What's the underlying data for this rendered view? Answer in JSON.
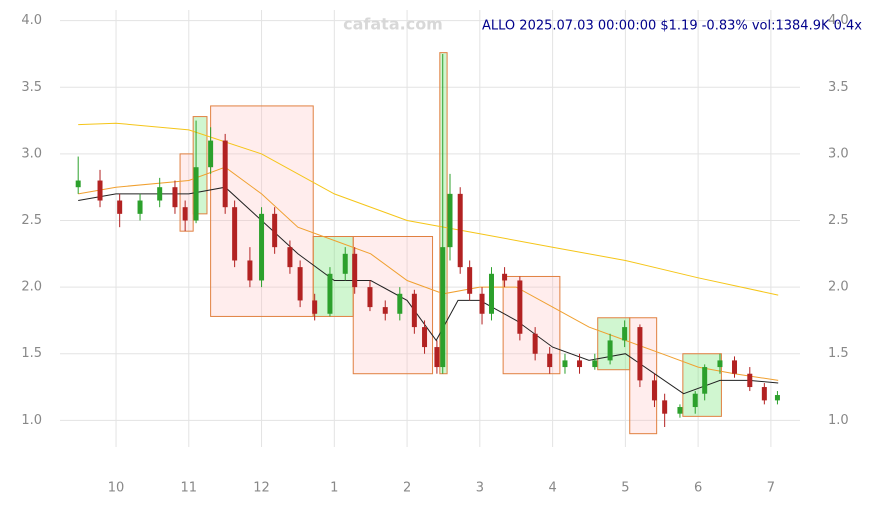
{
  "chart_data": {
    "type": "candlestick",
    "title": "ALLO 2025.07.03 00:00:00 $1.19 -0.83% vol:1384.9K 0.4x",
    "watermark": "cafata.com",
    "xlim": [
      9.23,
      19.4
    ],
    "ylim": [
      0.8,
      4.08
    ],
    "grid": true,
    "xticks": [
      {
        "value": 10,
        "label": "10"
      },
      {
        "value": 11,
        "label": "11"
      },
      {
        "value": 12,
        "label": "12"
      },
      {
        "value": 13,
        "label": "1"
      },
      {
        "value": 14,
        "label": "2"
      },
      {
        "value": 15,
        "label": "3"
      },
      {
        "value": 16,
        "label": "4"
      },
      {
        "value": 17,
        "label": "5"
      },
      {
        "value": 18,
        "label": "6"
      },
      {
        "value": 19,
        "label": "7"
      }
    ],
    "yticks": [
      {
        "value": 1,
        "label": "1.0"
      },
      {
        "value": 1.5,
        "label": "1.5"
      },
      {
        "value": 2,
        "label": "2.0"
      },
      {
        "value": 2.5,
        "label": "2.5"
      },
      {
        "value": 3,
        "label": "3.0"
      },
      {
        "value": 3.5,
        "label": "3.5"
      },
      {
        "value": 4,
        "label": "4.0"
      }
    ],
    "up_color": "#2ca02c",
    "down_color": "#b22222",
    "x": [
      9.48,
      9.78,
      10.05,
      10.33,
      10.6,
      10.81,
      10.95,
      11.1,
      11.3,
      11.5,
      11.63,
      11.84,
      12.0,
      12.18,
      12.39,
      12.53,
      12.73,
      12.94,
      13.15,
      13.28,
      13.49,
      13.7,
      13.9,
      14.1,
      14.24,
      14.41,
      14.49,
      14.59,
      14.73,
      14.86,
      15.03,
      15.16,
      15.34,
      15.55,
      15.76,
      15.96,
      16.17,
      16.37,
      16.58,
      16.79,
      16.99,
      17.2,
      17.4,
      17.54,
      17.75,
      17.96,
      18.09,
      18.3,
      18.5,
      18.71,
      18.91,
      19.09
    ],
    "open": [
      2.75,
      2.8,
      2.65,
      2.55,
      2.65,
      2.75,
      2.6,
      2.5,
      2.9,
      3.1,
      2.6,
      2.2,
      2.05,
      2.55,
      2.3,
      2.15,
      1.9,
      1.8,
      2.1,
      2.25,
      2.0,
      1.85,
      1.8,
      1.95,
      1.7,
      1.55,
      1.4,
      2.3,
      2.7,
      2.15,
      1.95,
      1.8,
      2.1,
      2.05,
      1.65,
      1.5,
      1.4,
      1.45,
      1.4,
      1.45,
      1.6,
      1.7,
      1.3,
      1.15,
      1.05,
      1.1,
      1.2,
      1.4,
      1.45,
      1.35,
      1.25,
      1.15
    ],
    "high": [
      2.98,
      2.88,
      2.7,
      2.7,
      2.82,
      2.8,
      2.65,
      3.25,
      3.2,
      3.15,
      2.65,
      2.3,
      2.6,
      2.6,
      2.35,
      2.2,
      1.95,
      2.15,
      2.3,
      2.3,
      2.05,
      1.9,
      2.0,
      1.98,
      1.75,
      1.6,
      3.75,
      2.85,
      2.75,
      2.2,
      2.0,
      2.15,
      2.15,
      2.08,
      1.7,
      1.55,
      1.5,
      1.5,
      1.5,
      1.65,
      1.75,
      1.72,
      1.35,
      1.2,
      1.12,
      1.22,
      1.42,
      1.5,
      1.48,
      1.4,
      1.28,
      1.22
    ],
    "low": [
      2.7,
      2.6,
      2.45,
      2.5,
      2.6,
      2.55,
      2.42,
      2.48,
      2.85,
      2.55,
      2.15,
      2.0,
      2.0,
      2.25,
      2.1,
      1.85,
      1.75,
      1.78,
      2.05,
      1.95,
      1.82,
      1.75,
      1.75,
      1.65,
      1.5,
      1.35,
      1.35,
      2.2,
      2.1,
      1.9,
      1.72,
      1.75,
      2.0,
      1.6,
      1.45,
      1.35,
      1.35,
      1.35,
      1.38,
      1.42,
      1.55,
      1.25,
      1.1,
      0.95,
      1.02,
      1.05,
      1.15,
      1.35,
      1.32,
      1.22,
      1.12,
      1.12
    ],
    "close": [
      2.8,
      2.65,
      2.55,
      2.65,
      2.75,
      2.6,
      2.5,
      2.9,
      3.1,
      2.6,
      2.2,
      2.05,
      2.55,
      2.3,
      2.15,
      1.9,
      1.8,
      2.1,
      2.25,
      2.0,
      1.85,
      1.8,
      1.95,
      1.7,
      1.55,
      1.4,
      2.3,
      2.7,
      2.15,
      1.95,
      1.8,
      2.1,
      2.05,
      1.65,
      1.5,
      1.4,
      1.45,
      1.4,
      1.45,
      1.6,
      1.7,
      1.3,
      1.15,
      1.05,
      1.1,
      1.2,
      1.4,
      1.45,
      1.35,
      1.25,
      1.15,
      1.19
    ],
    "lines": [
      {
        "color": "#f5c518",
        "x": [
          9.48,
          10,
          11,
          12,
          13,
          14,
          15,
          16,
          17,
          18,
          19.1
        ],
        "values": [
          3.22,
          3.23,
          3.18,
          3.0,
          2.7,
          2.5,
          2.4,
          2.3,
          2.2,
          2.07,
          1.94
        ]
      },
      {
        "color": "#f0a030",
        "x": [
          9.48,
          10,
          11,
          11.5,
          12,
          12.5,
          13,
          13.5,
          14,
          14.5,
          15,
          15.5,
          16,
          16.5,
          17,
          17.5,
          18,
          18.5,
          19.1
        ],
        "values": [
          2.7,
          2.75,
          2.8,
          2.9,
          2.7,
          2.45,
          2.35,
          2.25,
          2.05,
          1.95,
          2.0,
          2.0,
          1.85,
          1.7,
          1.6,
          1.5,
          1.4,
          1.35,
          1.3
        ]
      },
      {
        "color": "#222222",
        "x": [
          9.48,
          10,
          10.5,
          11,
          11.5,
          12,
          12.5,
          13,
          13.5,
          14,
          14.4,
          14.7,
          15,
          15.5,
          16,
          16.5,
          17,
          17.4,
          17.8,
          18.3,
          18.7,
          19.1
        ],
        "values": [
          2.65,
          2.7,
          2.7,
          2.7,
          2.75,
          2.5,
          2.25,
          2.05,
          2.05,
          1.9,
          1.6,
          1.9,
          1.9,
          1.75,
          1.55,
          1.45,
          1.5,
          1.35,
          1.2,
          1.3,
          1.3,
          1.28
        ]
      }
    ],
    "boxes": [
      {
        "color": "pink",
        "x": [
          10.88,
          11.06
        ],
        "values": [
          2.42,
          3.0
        ]
      },
      {
        "color": "green",
        "x": [
          11.06,
          11.25
        ],
        "values": [
          2.55,
          3.28
        ]
      },
      {
        "color": "pink",
        "x": [
          11.3,
          12.71
        ],
        "values": [
          1.78,
          3.36
        ]
      },
      {
        "color": "green",
        "x": [
          12.71,
          13.26
        ],
        "values": [
          1.78,
          2.38
        ]
      },
      {
        "color": "pink",
        "x": [
          13.26,
          14.35
        ],
        "values": [
          1.35,
          2.38
        ]
      },
      {
        "color": "green",
        "x": [
          14.45,
          14.55
        ],
        "values": [
          1.35,
          3.76
        ]
      },
      {
        "color": "pink",
        "x": [
          15.32,
          16.1
        ],
        "values": [
          1.35,
          2.08
        ]
      },
      {
        "color": "green",
        "x": [
          16.62,
          17.06
        ],
        "values": [
          1.38,
          1.77
        ]
      },
      {
        "color": "pink",
        "x": [
          17.06,
          17.43
        ],
        "values": [
          0.9,
          1.77
        ]
      },
      {
        "color": "green",
        "x": [
          17.79,
          18.32
        ],
        "values": [
          1.03,
          1.5
        ]
      }
    ]
  }
}
